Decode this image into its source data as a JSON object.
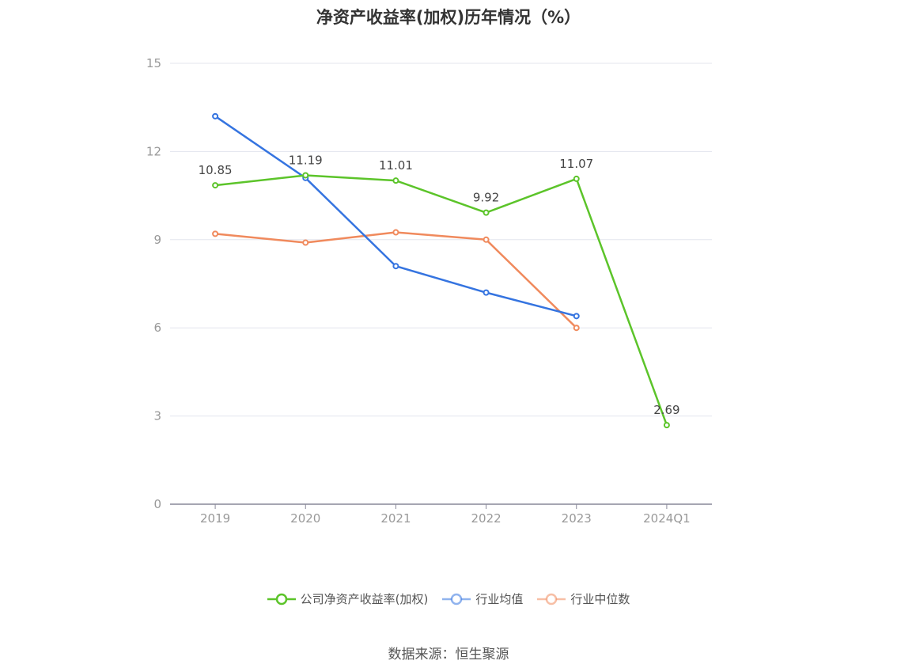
{
  "chart_data": {
    "type": "line",
    "title": "净资产收益率(加权)历年情况（%）",
    "xlabel": "",
    "ylabel": "",
    "categories": [
      "2019",
      "2020",
      "2021",
      "2022",
      "2023",
      "2024Q1"
    ],
    "ylim": [
      0,
      15
    ],
    "yticks": [
      0,
      3,
      6,
      9,
      12,
      15
    ],
    "grid": true,
    "legend_position": "bottom",
    "series": [
      {
        "name": "公司净资产收益率(加权)",
        "color": "#5cc42a",
        "values": [
          10.85,
          11.19,
          11.01,
          9.92,
          11.07,
          2.69
        ],
        "labels": [
          "10.85",
          "11.19",
          "11.01",
          "9.92",
          "11.07",
          "2.69"
        ]
      },
      {
        "name": "行业均值",
        "color": "#3574e0",
        "values": [
          13.2,
          11.1,
          8.1,
          7.2,
          6.4,
          null
        ]
      },
      {
        "name": "行业中位数",
        "color": "#f08a5d",
        "values": [
          9.2,
          8.9,
          9.25,
          9.0,
          6.0,
          null
        ]
      }
    ]
  },
  "source_text": "数据来源：恒生聚源"
}
